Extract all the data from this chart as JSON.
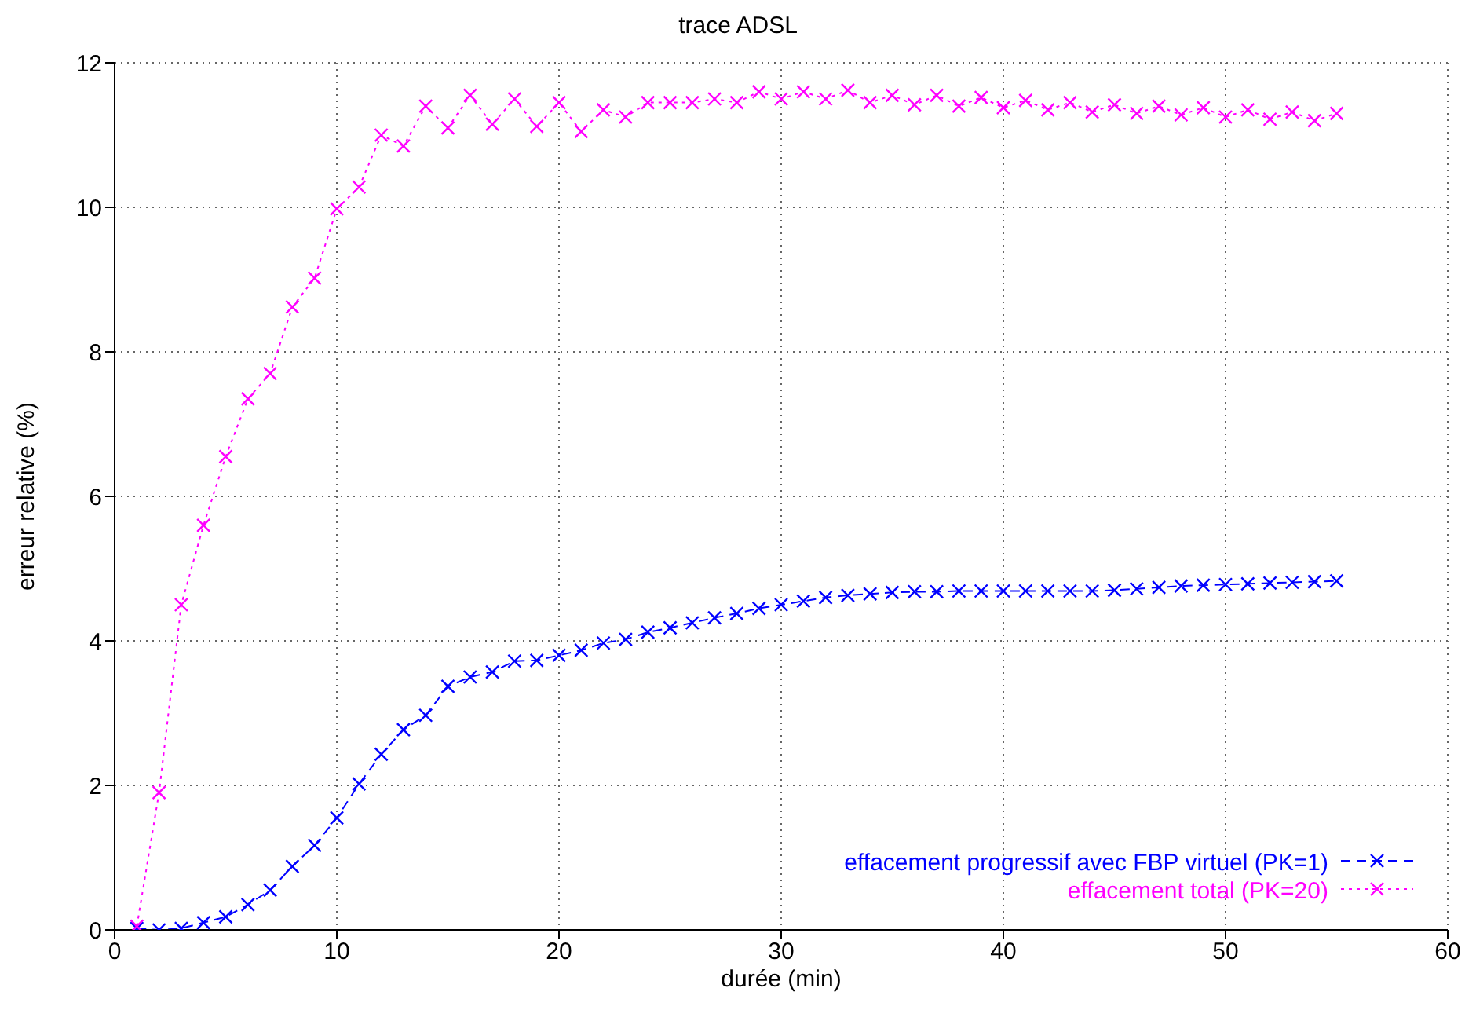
{
  "chart_data": {
    "type": "line",
    "title": "trace ADSL",
    "xlabel": "durée (min)",
    "ylabel": "erreur relative (%)",
    "x": [
      1,
      2,
      3,
      4,
      5,
      6,
      7,
      8,
      9,
      10,
      11,
      12,
      13,
      14,
      15,
      16,
      17,
      18,
      19,
      20,
      21,
      22,
      23,
      24,
      25,
      26,
      27,
      28,
      29,
      30,
      31,
      32,
      33,
      34,
      35,
      36,
      37,
      38,
      39,
      40,
      41,
      42,
      43,
      44,
      45,
      46,
      47,
      48,
      49,
      50,
      51,
      52,
      53,
      54,
      55
    ],
    "xlim": [
      0,
      60
    ],
    "xticks": [
      0,
      10,
      20,
      30,
      40,
      50,
      60
    ],
    "ylim": [
      0,
      12
    ],
    "yticks": [
      0,
      2,
      4,
      6,
      8,
      10,
      12
    ],
    "grid": true,
    "legend": "bottom right",
    "marker": "cross",
    "series": [
      {
        "name": "effacement progressif avec FBP virtuel (PK=1)",
        "color": "#0000ff",
        "line_style": "dashed",
        "values": [
          0.02,
          0.0,
          0.02,
          0.1,
          0.18,
          0.35,
          0.55,
          0.88,
          1.17,
          1.55,
          2.02,
          2.43,
          2.77,
          2.97,
          3.37,
          3.5,
          3.57,
          3.72,
          3.73,
          3.8,
          3.87,
          3.97,
          4.02,
          4.12,
          4.18,
          4.25,
          4.32,
          4.38,
          4.45,
          4.5,
          4.55,
          4.6,
          4.63,
          4.65,
          4.67,
          4.68,
          4.68,
          4.69,
          4.69,
          4.69,
          4.69,
          4.69,
          4.69,
          4.69,
          4.7,
          4.72,
          4.74,
          4.76,
          4.77,
          4.78,
          4.79,
          4.8,
          4.81,
          4.82,
          4.83
        ]
      },
      {
        "name": "effacement total (PK=20)",
        "color": "#ff00ff",
        "line_style": "dotted",
        "values": [
          0.05,
          1.9,
          4.5,
          5.6,
          6.55,
          7.35,
          7.7,
          8.62,
          9.02,
          9.98,
          10.28,
          11.0,
          10.85,
          11.4,
          11.1,
          11.55,
          11.15,
          11.5,
          11.12,
          11.45,
          11.05,
          11.35,
          11.25,
          11.45,
          11.45,
          11.45,
          11.5,
          11.45,
          11.6,
          11.5,
          11.6,
          11.5,
          11.62,
          11.45,
          11.55,
          11.42,
          11.55,
          11.4,
          11.52,
          11.38,
          11.48,
          11.35,
          11.45,
          11.32,
          11.42,
          11.3,
          11.4,
          11.28,
          11.38,
          11.25,
          11.35,
          11.22,
          11.32,
          11.2,
          11.3
        ]
      }
    ]
  }
}
